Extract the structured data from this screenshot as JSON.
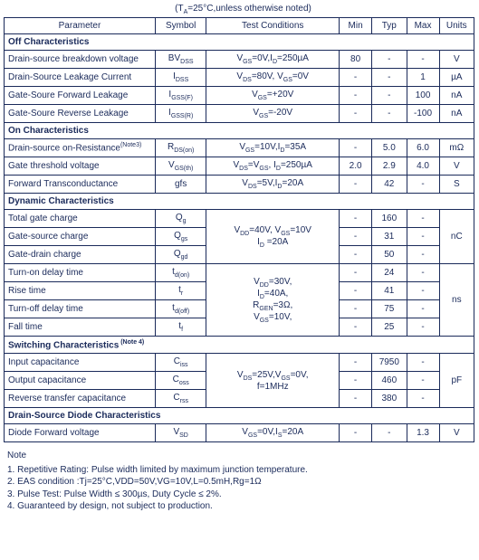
{
  "caption": "(T",
  "caption_sub": "A",
  "caption_rest": "=25°C,unless otherwise noted)",
  "headers": {
    "param": "Parameter",
    "symbol": "Symbol",
    "cond": "Test Conditions",
    "min": "Min",
    "typ": "Typ",
    "max": "Max",
    "units": "Units"
  },
  "sections": {
    "off": "Off Characteristics",
    "on": "On Characteristics",
    "dyn": "Dynamic Characteristics",
    "sw_pre": "Switching Characteristics",
    "sw_note": " (Note 4)",
    "diode": "Drain-Source Diode Characteristics"
  },
  "off": {
    "r1": {
      "p": "Drain-source breakdown voltage",
      "sym_pre": "BV",
      "sym_sub": "DSS",
      "c_pre": "V",
      "c_sub": "GS",
      "c_txt": "=0V,I",
      "c_sub2": "D",
      "c_txt2": "=250µA",
      "min": "80",
      "typ": "-",
      "max": "-",
      "u": "V"
    },
    "r2": {
      "p": "Drain-Source Leakage Current",
      "sym_pre": "I",
      "sym_sub": "DSS",
      "c": "V",
      "c_s1": "DS",
      "c_t1": "=80V, V",
      "c_s2": "GS",
      "c_t2": "=0V",
      "min": "-",
      "typ": "-",
      "max": "1",
      "u": "µA"
    },
    "r3": {
      "p": "Gate-Soure Forward Leakage",
      "sym_pre": "I",
      "sym_sub": "GSS(F)",
      "c": "V",
      "c_s1": "GS",
      "c_t1": "=+20V",
      "min": "-",
      "typ": "-",
      "max": "100",
      "u": "nA"
    },
    "r4": {
      "p": "Gate-Soure Reverse Leakage",
      "sym_pre": "I",
      "sym_sub": "GSS(R)",
      "c": "V",
      "c_s1": "GS",
      "c_t1": "=-20V",
      "min": "-",
      "typ": "-",
      "max": "-100",
      "u": "nA"
    }
  },
  "on": {
    "r1": {
      "p_pre": "Drain-source on-Resistance",
      "p_note": "(Note3)",
      "sym_pre": "R",
      "sym_sub": "DS(on)",
      "c": "V",
      "c_s1": "GS",
      "c_t1": "=10V,I",
      "c_s2": "D",
      "c_t2": "=35A",
      "min": "-",
      "typ": "5.0",
      "max": "6.0",
      "u": "mΩ"
    },
    "r2": {
      "p": "Gate threshold voltage",
      "sym_pre": "V",
      "sym_sub": "GS(th)",
      "c": "V",
      "c_s1": "DS",
      "c_t1": "=V",
      "c_s2": "GS",
      "c_t2": ", I",
      "c_s3": "D",
      "c_t3": "=250µA",
      "min": "2.0",
      "typ": "2.9",
      "max": "4.0",
      "u": "V"
    },
    "r3": {
      "p": "Forward Transconductance",
      "sym": "gfs",
      "c": "V",
      "c_s1": "DS",
      "c_t1": "=5V,I",
      "c_s2": "D",
      "c_t2": "=20A",
      "min": "-",
      "typ": "42",
      "max": "-",
      "u": "S"
    }
  },
  "dyn": {
    "tg": {
      "p": "Total gate charge",
      "sym_pre": "Q",
      "sym_sub": "g",
      "min": "-",
      "typ": "160",
      "max": "-"
    },
    "gsc": {
      "p": "Gate-source charge",
      "sym_pre": "Q",
      "sym_sub": "gs",
      "min": "-",
      "typ": "31",
      "max": "-"
    },
    "gdc": {
      "p": "Gate-drain charge",
      "sym_pre": "Q",
      "sym_sub": "gd",
      "min": "-",
      "typ": "50",
      "max": "-"
    },
    "c1_l1": "V",
    "c1_s1": "DD",
    "c1_t1": "=40V, V",
    "c1_s2": "GS",
    "c1_t2": "=10V",
    "c1_l2": "I",
    "c1_s3": "D",
    "c1_t3": " =20A",
    "u1": "nC",
    "ton": {
      "p": "Turn-on delay time",
      "sym_pre": "t",
      "sym_sub": "d(on)",
      "min": "-",
      "typ": "24",
      "max": "-"
    },
    "rise": {
      "p": "Rise time",
      "sym_pre": "t",
      "sym_sub": "r",
      "min": "-",
      "typ": "41",
      "max": "-"
    },
    "toff": {
      "p": "Turn-off delay time",
      "sym_pre": "t",
      "sym_sub": "d(off)",
      "min": "-",
      "typ": "75",
      "max": "-"
    },
    "fall": {
      "p": "Fall time",
      "sym_pre": "t",
      "sym_sub": "f",
      "min": "-",
      "typ": "25",
      "max": "-"
    },
    "c2_l1": "V",
    "c2_s1": "DD",
    "c2_t1": "=30V,",
    "c2_l2": "I",
    "c2_s2": "D",
    "c2_t2": "=40A,",
    "c2_l3": "R",
    "c2_s3": "GEN",
    "c2_t3": "=3Ω,",
    "c2_l4": "V",
    "c2_s4": "GS",
    "c2_t4": "=10V,",
    "u2": "ns"
  },
  "sw": {
    "r1": {
      "p": "Input capacitance",
      "sym_pre": "C",
      "sym_sub": "iss",
      "min": "-",
      "typ": "7950",
      "max": "-"
    },
    "r2": {
      "p": "Output capacitance",
      "sym_pre": "C",
      "sym_sub": "oss",
      "min": "-",
      "typ": "460",
      "max": "-"
    },
    "r3": {
      "p": "Reverse transfer capacitance",
      "sym_pre": "C",
      "sym_sub": "rss",
      "min": "-",
      "typ": "380",
      "max": "-"
    },
    "c_l1": "V",
    "c_s1": "DS",
    "c_t1": "=25V,V",
    "c_s2": "GS",
    "c_t2": "=0V,",
    "c_l2": "f=1MHz",
    "u": "pF"
  },
  "diode": {
    "r1": {
      "p": "Diode Forward voltage",
      "sym_pre": "V",
      "sym_sub": "SD",
      "c": "V",
      "c_s1": "GS",
      "c_t1": "=0V,I",
      "c_s2": "S",
      "c_t2": "=20A",
      "min": "-",
      "typ": "-",
      "max": "1.3",
      "u": "V"
    }
  },
  "notes": {
    "title": "Note",
    "n1": "1. Repetitive Rating: Pulse width limited by maximum junction temperature.",
    "n2": "2. EAS condition :Tj=25°C,VDD=50V,VG=10V,L=0.5mH,Rg=1Ω",
    "n3": "3. Pulse Test: Pulse Width ≤ 300µs, Duty Cycle ≤ 2%.",
    "n4": "4. Guaranteed by design, not subject to production."
  }
}
